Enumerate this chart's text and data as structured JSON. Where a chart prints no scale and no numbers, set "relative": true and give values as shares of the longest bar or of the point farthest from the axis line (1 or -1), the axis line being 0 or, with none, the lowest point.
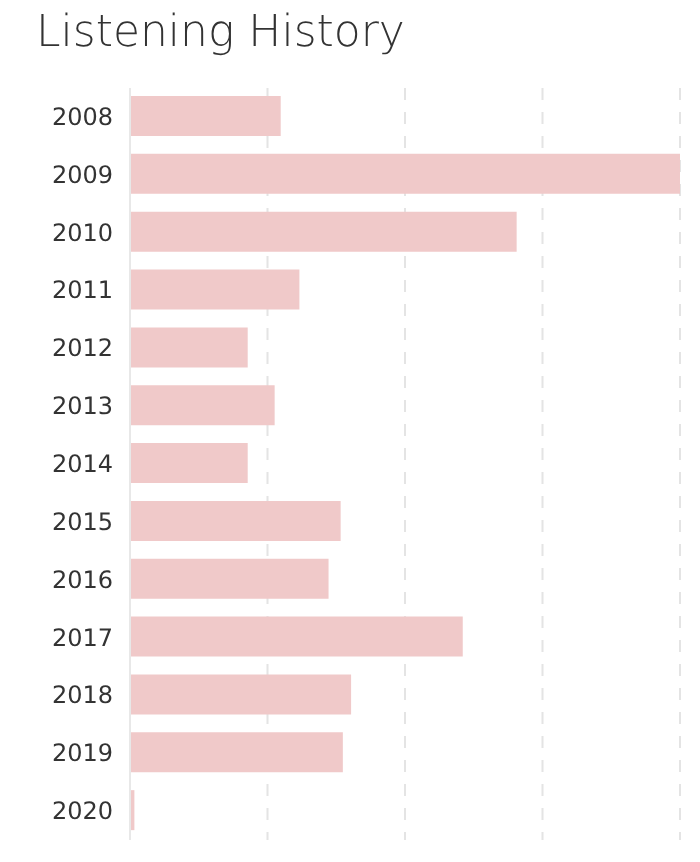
{
  "chart_data": {
    "type": "bar",
    "title": "Listening History",
    "orientation": "horizontal",
    "relative": true,
    "grid": "x",
    "categories": [
      "2008",
      "2009",
      "2010",
      "2011",
      "2012",
      "2013",
      "2014",
      "2015",
      "2016",
      "2017",
      "2018",
      "2019",
      "2020"
    ],
    "values": [
      0.274,
      1,
      0.703,
      0.308,
      0.214,
      0.263,
      0.214,
      0.383,
      0.361,
      0.605,
      0.402,
      0.387,
      0.008
    ],
    "color": "#f0c9c9"
  }
}
